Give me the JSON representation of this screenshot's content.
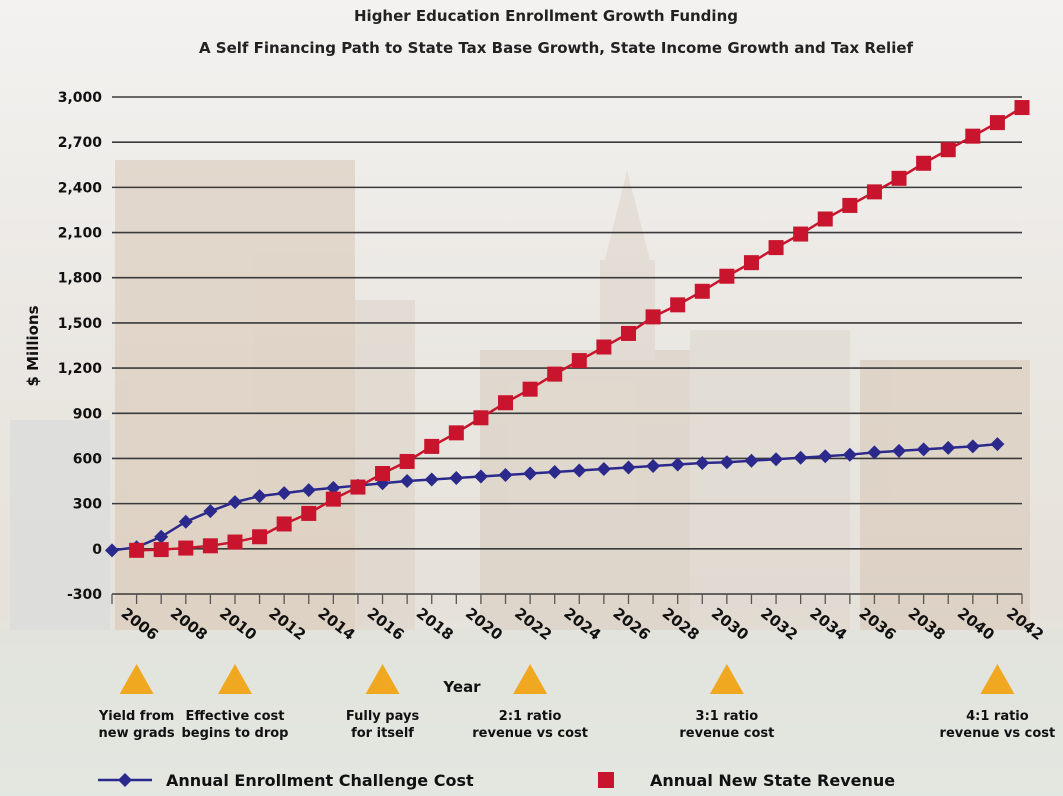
{
  "chart_data": {
    "type": "line",
    "title": "Higher Education Enrollment Growth Funding",
    "subtitle": "A Self Financing Path to State Tax Base Growth, State Income Growth and Tax Relief",
    "xlabel": "Year",
    "ylabel": "$ Millions",
    "ylim": [
      -300,
      3000
    ],
    "yticks": [
      "3,000",
      "2,700",
      "2,400",
      "2,100",
      "1,800",
      "1,500",
      "1,200",
      "900",
      "600",
      "300",
      "0",
      "-300"
    ],
    "ytick_values": [
      3000,
      2700,
      2400,
      2100,
      1800,
      1500,
      1200,
      900,
      600,
      300,
      0,
      -300
    ],
    "xlim": [
      2005,
      2042
    ],
    "xticks": [
      "2006",
      "2008",
      "2010",
      "2012",
      "2014",
      "2016",
      "2018",
      "2020",
      "2022",
      "2024",
      "2026",
      "2028",
      "2030",
      "2032",
      "2034",
      "2036",
      "2038",
      "2040",
      "2042"
    ],
    "xtick_values": [
      2006,
      2008,
      2010,
      2012,
      2014,
      2016,
      2018,
      2020,
      2022,
      2024,
      2026,
      2028,
      2030,
      2032,
      2034,
      2036,
      2038,
      2040,
      2042
    ],
    "grid": true,
    "legend_position": "bottom",
    "series": [
      {
        "name": "Annual Enrollment Challenge Cost",
        "marker": "diamond",
        "color": "#2b2a8c",
        "x": [
          2005,
          2006,
          2007,
          2008,
          2009,
          2010,
          2011,
          2012,
          2013,
          2014,
          2015,
          2016,
          2017,
          2018,
          2019,
          2020,
          2021,
          2022,
          2023,
          2024,
          2025,
          2026,
          2027,
          2028,
          2029,
          2030,
          2031,
          2032,
          2033,
          2034,
          2035,
          2036,
          2037,
          2038,
          2039,
          2040,
          2041
        ],
        "values": [
          -10,
          10,
          80,
          180,
          250,
          310,
          350,
          370,
          390,
          405,
          420,
          435,
          450,
          460,
          470,
          480,
          490,
          500,
          510,
          520,
          530,
          540,
          550,
          560,
          570,
          575,
          585,
          595,
          605,
          615,
          625,
          640,
          650,
          660,
          670,
          680,
          695
        ]
      },
      {
        "name": "Annual New State Revenue",
        "marker": "square",
        "color": "#c8142c",
        "x": [
          2006,
          2007,
          2008,
          2009,
          2010,
          2011,
          2012,
          2013,
          2014,
          2015,
          2016,
          2017,
          2018,
          2019,
          2020,
          2021,
          2022,
          2023,
          2024,
          2025,
          2026,
          2027,
          2028,
          2029,
          2030,
          2031,
          2032,
          2033,
          2034,
          2035,
          2036,
          2037,
          2038,
          2039,
          2040,
          2041,
          2042
        ],
        "values": [
          -10,
          -5,
          5,
          20,
          45,
          80,
          165,
          235,
          330,
          410,
          500,
          580,
          680,
          770,
          870,
          970,
          1060,
          1160,
          1250,
          1340,
          1430,
          1540,
          1620,
          1710,
          1810,
          1900,
          2000,
          2090,
          2190,
          2280,
          2370,
          2460,
          2560,
          2650,
          2740,
          2830,
          2930
        ]
      }
    ],
    "annotations": [
      {
        "x": 2006,
        "lines": [
          "Yield from",
          "new grads"
        ]
      },
      {
        "x": 2010,
        "lines": [
          "Effective cost",
          "begins to drop"
        ]
      },
      {
        "x": 2016,
        "lines": [
          "Fully pays",
          "for itself"
        ]
      },
      {
        "x": 2022,
        "lines": [
          "2:1 ratio",
          "revenue vs cost"
        ]
      },
      {
        "x": 2030,
        "lines": [
          "3:1 ratio",
          "revenue cost"
        ]
      },
      {
        "x": 2041,
        "lines": [
          "4:1 ratio",
          "revenue vs cost"
        ]
      }
    ],
    "colors": {
      "grid": "#3a3a3a",
      "triangle": "#f0a820",
      "series_cost": "#2b2a8c",
      "series_revenue": "#c8142c"
    }
  }
}
